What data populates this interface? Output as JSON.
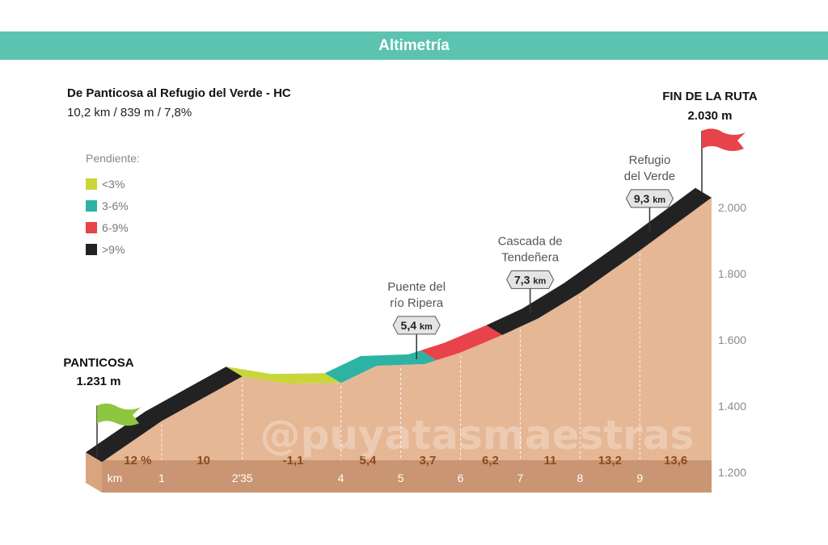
{
  "header": {
    "title": "Altimetría"
  },
  "route": {
    "title": "De Panticosa al Refugio del Verde - HC",
    "summary": "10,2 km / 839 m / 7,8%"
  },
  "legend": {
    "title": "Pendiente:",
    "items": [
      {
        "label": "<3%",
        "color": "#c8d63a"
      },
      {
        "label": "3-6%",
        "color": "#2cb3a4"
      },
      {
        "label": "6-9%",
        "color": "#e8424a"
      },
      {
        "label": ">9%",
        "color": "#222222"
      }
    ]
  },
  "watermark": "@puyatasmaestras",
  "chart_data": {
    "type": "area",
    "xlabel": "km",
    "ylim": [
      1200,
      2050
    ],
    "xlim": [
      0,
      10.2
    ],
    "y_ticks": [
      "1.200",
      "1.400",
      "1.600",
      "1.800",
      "2.000"
    ],
    "y_tick_values": [
      1200,
      1400,
      1600,
      1800,
      2000
    ],
    "x_ticks": [
      {
        "label": "1",
        "km": 1
      },
      {
        "label": "2'35",
        "km": 2.35
      },
      {
        "label": "4",
        "km": 4
      },
      {
        "label": "5",
        "km": 5
      },
      {
        "label": "6",
        "km": 6
      },
      {
        "label": "7",
        "km": 7
      },
      {
        "label": "8",
        "km": 8
      },
      {
        "label": "9",
        "km": 9
      }
    ],
    "profile": {
      "x": [
        0,
        1,
        2.35,
        3.1,
        4,
        4.6,
        5.4,
        6,
        6.7,
        7.3,
        8,
        9,
        10.2
      ],
      "y": [
        1231,
        1355,
        1490,
        1468,
        1470,
        1522,
        1527,
        1562,
        1615,
        1665,
        1742,
        1870,
        2030
      ]
    },
    "segments": [
      {
        "from": 0,
        "to": 2.35,
        "class": ">9%"
      },
      {
        "from": 2.35,
        "to": 4,
        "class": "<3%"
      },
      {
        "from": 4,
        "to": 5.6,
        "class": "3-6%"
      },
      {
        "from": 5.6,
        "to": 6.7,
        "class": "6-9%"
      },
      {
        "from": 6.7,
        "to": 10.2,
        "class": ">9%"
      }
    ],
    "gradients": [
      {
        "label": "12 %",
        "km": 0.6
      },
      {
        "label": "10",
        "km": 1.7
      },
      {
        "label": "-1,1",
        "km": 3.2
      },
      {
        "label": "5,4",
        "km": 4.45
      },
      {
        "label": "3,7",
        "km": 5.45
      },
      {
        "label": "6,2",
        "km": 6.5
      },
      {
        "label": "11",
        "km": 7.5
      },
      {
        "label": "13,2",
        "km": 8.5
      },
      {
        "label": "13,6",
        "km": 9.6
      }
    ],
    "waypoints": [
      {
        "name_lines": [
          "Puente del",
          "río Ripera"
        ],
        "km_label": "5,4",
        "unit": "km",
        "km": 5.4
      },
      {
        "name_lines": [
          "Cascada de",
          "Tendeñera"
        ],
        "km_label": "7,3",
        "unit": "km",
        "km": 7.3
      },
      {
        "name_lines": [
          "Refugio",
          "del Verde"
        ],
        "km_label": "9,3",
        "unit": "km",
        "km": 9.3
      }
    ],
    "start": {
      "name": "PANTICOSA",
      "altitude": "1.231 m",
      "flag_color": "#8dc63f"
    },
    "finish": {
      "name": "FIN DE LA RUTA",
      "altitude": "2.030 m",
      "flag_color": "#e8424a"
    }
  }
}
